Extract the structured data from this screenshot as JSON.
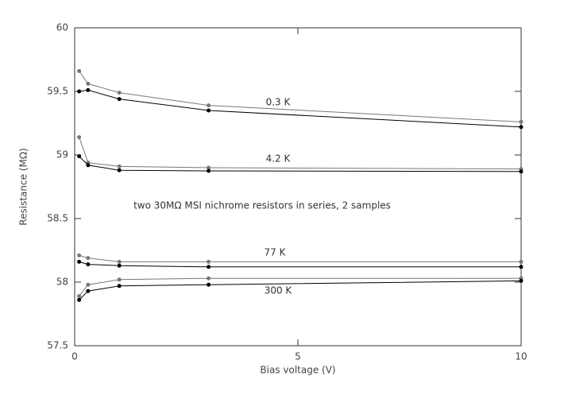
{
  "chart_data": {
    "type": "line",
    "xlabel": "Bias voltage (V)",
    "ylabel": "Resistance (MΩ)",
    "xlim": [
      0,
      10
    ],
    "ylim": [
      57.5,
      60
    ],
    "xticks": [
      0,
      5,
      10
    ],
    "yticks": [
      57.5,
      58,
      58.5,
      59,
      59.5,
      60
    ],
    "x": [
      0.1,
      0.3,
      1,
      3,
      10
    ],
    "series": [
      {
        "color": "#777777",
        "values": [
          59.66,
          59.56,
          59.49,
          59.39,
          59.26
        ]
      },
      {
        "color": "#000000",
        "values": [
          59.5,
          59.51,
          59.44,
          59.35,
          59.22
        ]
      },
      {
        "color": "#777777",
        "values": [
          59.14,
          58.94,
          58.91,
          58.9,
          58.89
        ]
      },
      {
        "color": "#000000",
        "values": [
          58.99,
          58.92,
          58.88,
          58.875,
          58.87
        ]
      },
      {
        "color": "#777777",
        "values": [
          58.21,
          58.19,
          58.16,
          58.16,
          58.16
        ]
      },
      {
        "color": "#000000",
        "values": [
          58.16,
          58.14,
          58.13,
          58.12,
          58.12
        ]
      },
      {
        "color": "#777777",
        "values": [
          57.89,
          57.98,
          58.02,
          58.03,
          58.03
        ]
      },
      {
        "color": "#000000",
        "values": [
          57.86,
          57.93,
          57.97,
          57.98,
          58.01
        ]
      }
    ],
    "annotations": [
      "0.3 K",
      "4.2 K",
      "77 K",
      "300 K",
      "two 30MΩ MSI nichrome resistors in series, 2 samples"
    ]
  }
}
